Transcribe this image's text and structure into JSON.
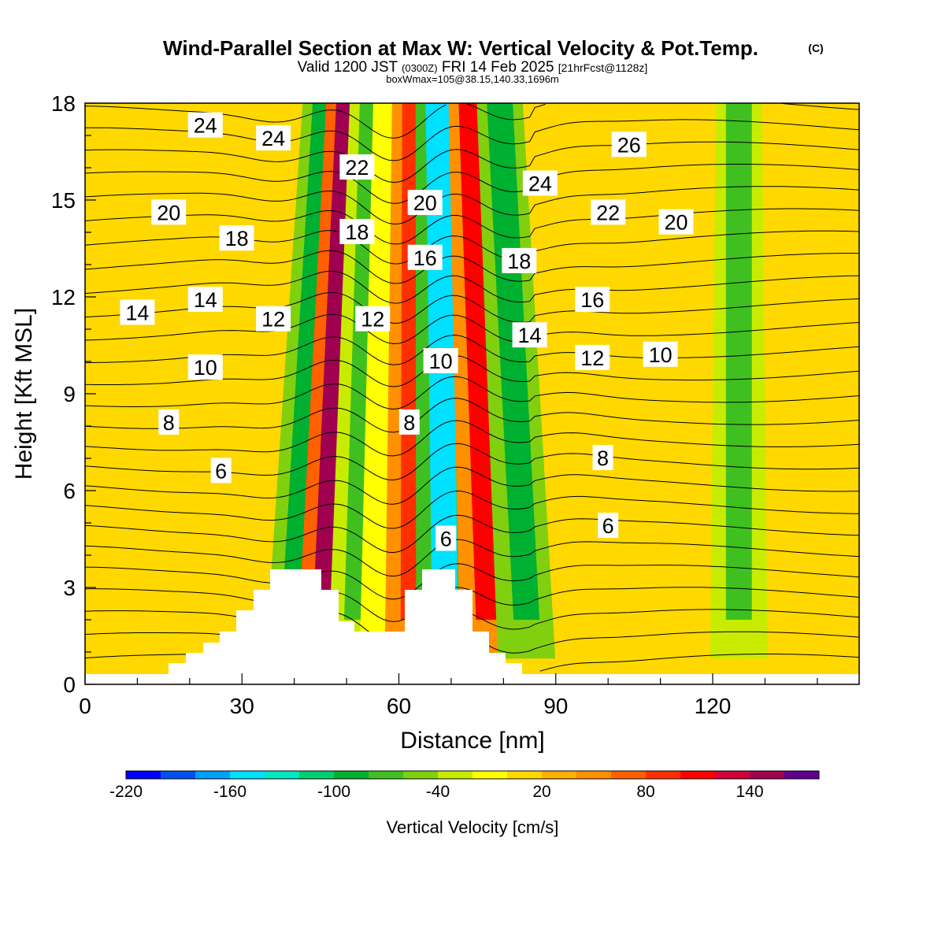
{
  "chart_data": {
    "type": "heatmap",
    "title": "Wind-Parallel Section at Max W: Vertical Velocity & Pot.Temp.",
    "title_mark": "(C)",
    "subtitle_parts": [
      "Valid 1200 JST",
      "(0300Z)",
      "FRI 14 Feb 2025",
      "[21hrFcst@1128z]"
    ],
    "subtitle2": "boxWmax=105@38.15,140.33,1696m",
    "xlabel": "Distance [nm]",
    "ylabel": "Height [Kft MSL]",
    "xlim": [
      0,
      148
    ],
    "ylim": [
      0,
      18
    ],
    "x_ticks": [
      0,
      30,
      60,
      90,
      120
    ],
    "y_ticks": [
      0,
      3,
      6,
      9,
      12,
      15,
      18
    ],
    "colorbar": {
      "label": "Vertical Velocity [cm/s]",
      "levels": [
        -220,
        -200,
        -180,
        -160,
        -140,
        -120,
        -100,
        -80,
        -60,
        -40,
        -20,
        0,
        20,
        40,
        60,
        80,
        100,
        120,
        140,
        160,
        180
      ],
      "colors": [
        "#0000ff",
        "#0050f0",
        "#00a0ff",
        "#00e0ff",
        "#00e8c0",
        "#00d070",
        "#00b030",
        "#40c020",
        "#80d010",
        "#c8ec00",
        "#ffff00",
        "#ffd800",
        "#ffb000",
        "#ff9000",
        "#ff6000",
        "#ff3000",
        "#ff0000",
        "#d0003a",
        "#a00050",
        "#600090"
      ],
      "tick_labels": [
        "-220",
        "-160",
        "-100",
        "-40",
        "20",
        "80",
        "140"
      ]
    },
    "vertical_velocity_bands": [
      {
        "x": 44,
        "value": -90
      },
      {
        "x": 49,
        "value": 150
      },
      {
        "x": 54,
        "value": -80
      },
      {
        "x": 59,
        "value": -10
      },
      {
        "x": 63,
        "value": 90
      },
      {
        "x": 68,
        "value": -150
      },
      {
        "x": 75,
        "value": 110
      },
      {
        "x": 81,
        "value": -90
      },
      {
        "x": 125,
        "value": -70
      }
    ],
    "theta_contour_labels": [
      {
        "value": "24",
        "x": 23,
        "y": 17.3
      },
      {
        "value": "24",
        "x": 36,
        "y": 16.9
      },
      {
        "value": "22",
        "x": 52,
        "y": 16.0
      },
      {
        "value": "26",
        "x": 104,
        "y": 16.7
      },
      {
        "value": "24",
        "x": 87,
        "y": 15.5
      },
      {
        "value": "20",
        "x": 65,
        "y": 14.9
      },
      {
        "value": "20",
        "x": 16,
        "y": 14.6
      },
      {
        "value": "22",
        "x": 100,
        "y": 14.6
      },
      {
        "value": "20",
        "x": 113,
        "y": 14.3
      },
      {
        "value": "18",
        "x": 52,
        "y": 14.0
      },
      {
        "value": "18",
        "x": 29,
        "y": 13.8
      },
      {
        "value": "16",
        "x": 65,
        "y": 13.2
      },
      {
        "value": "18",
        "x": 83,
        "y": 13.1
      },
      {
        "value": "16",
        "x": 97,
        "y": 11.9
      },
      {
        "value": "14",
        "x": 23,
        "y": 11.9
      },
      {
        "value": "14",
        "x": 10,
        "y": 11.5
      },
      {
        "value": "12",
        "x": 36,
        "y": 11.3
      },
      {
        "value": "12",
        "x": 55,
        "y": 11.3
      },
      {
        "value": "14",
        "x": 85,
        "y": 10.8
      },
      {
        "value": "12",
        "x": 97,
        "y": 10.1
      },
      {
        "value": "10",
        "x": 110,
        "y": 10.2
      },
      {
        "value": "10",
        "x": 68,
        "y": 10.0
      },
      {
        "value": "10",
        "x": 23,
        "y": 9.8
      },
      {
        "value": "8",
        "x": 16,
        "y": 8.1
      },
      {
        "value": "8",
        "x": 62,
        "y": 8.1
      },
      {
        "value": "8",
        "x": 99,
        "y": 7.0
      },
      {
        "value": "6",
        "x": 26,
        "y": 6.6
      },
      {
        "value": "6",
        "x": 100,
        "y": 4.9
      },
      {
        "value": "6",
        "x": 69,
        "y": 4.5
      }
    ]
  }
}
